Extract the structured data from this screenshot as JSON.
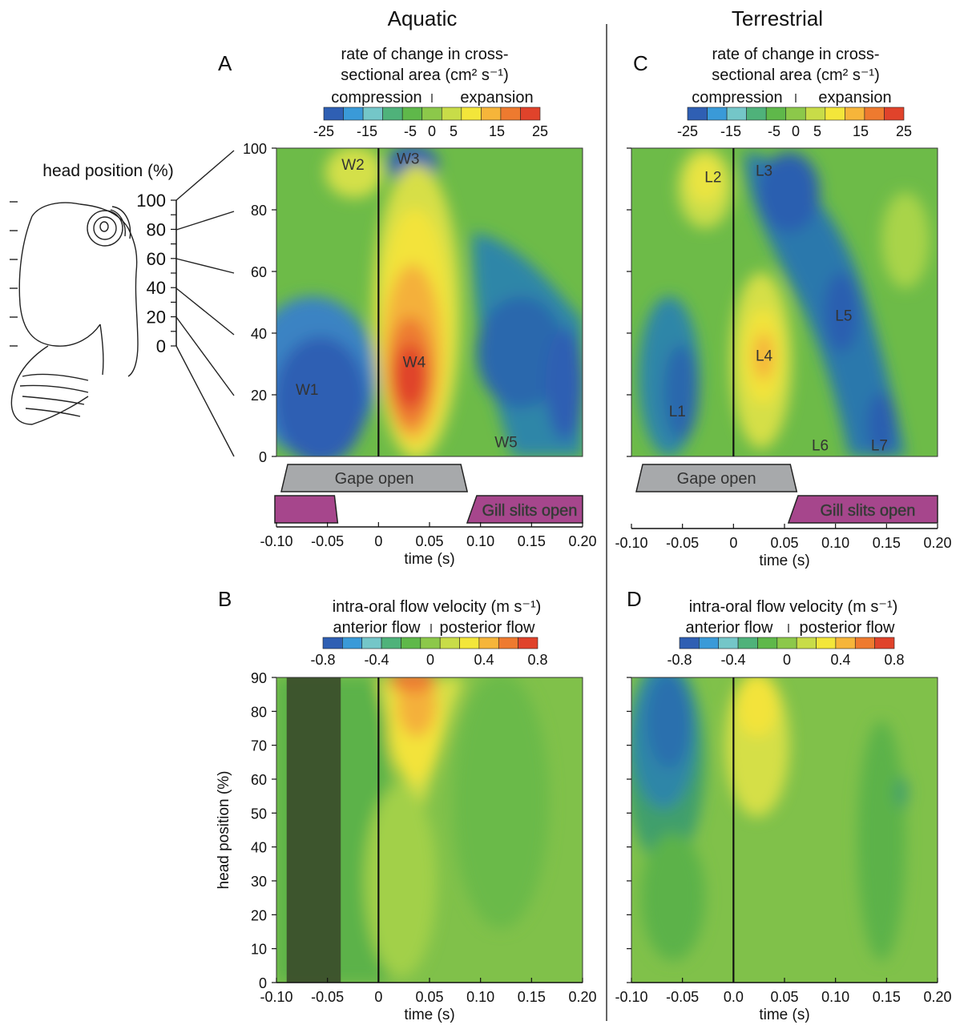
{
  "columns": {
    "aquatic": "Aquatic",
    "terrestrial": "Terrestrial"
  },
  "panels": {
    "A": "A",
    "B": "B",
    "C": "C",
    "D": "D"
  },
  "sketch": {
    "label": "head position (%)",
    "ticks": [
      "100",
      "80",
      "60",
      "40",
      "20",
      "0"
    ]
  },
  "area_colorbar": {
    "title1": "rate of change in cross-",
    "title2": "sectional area (cm² s⁻¹)",
    "left_label": "compression",
    "right_label": "expansion",
    "ticks": [
      "-25",
      "-15",
      "-5",
      "0",
      "5",
      "15",
      "25"
    ]
  },
  "flow_colorbar": {
    "title": "intra-oral flow velocity (m s⁻¹)",
    "left_label": "anterior flow",
    "right_label": "posterior flow",
    "ticks": [
      "-0.8",
      "-0.4",
      "0",
      "0.4",
      "0.8"
    ]
  },
  "colors": {
    "scale": [
      "#2f5fb3",
      "#3a9ad8",
      "#74c6c8",
      "#4fb27a",
      "#5fb84a",
      "#8cc84a",
      "#c8dc48",
      "#f3e63a",
      "#f6b53a",
      "#ee7a2f",
      "#e0432b"
    ],
    "gape": "#a7a9ab",
    "gill": "#a6468c",
    "shade": "#3a4a2a"
  },
  "chart_data": [
    {
      "type": "heatmap",
      "panel": "A",
      "xlabel": "time (s)",
      "x_ticks": [
        "-0.10",
        "-0.05",
        "0",
        "0.05",
        "0.10",
        "0.15",
        "0.20"
      ],
      "y_ticks": [
        "0",
        "20",
        "40",
        "60",
        "80",
        "100"
      ],
      "xlim": [
        -0.1,
        0.2
      ],
      "ylim": [
        0,
        100
      ],
      "zones": [
        {
          "label": "W1",
          "t": -0.07,
          "h": 20
        },
        {
          "label": "W2",
          "t": -0.025,
          "h": 93
        },
        {
          "label": "W3",
          "t": 0.029,
          "h": 95
        },
        {
          "label": "W4",
          "t": 0.035,
          "h": 29
        },
        {
          "label": "W5",
          "t": 0.125,
          "h": 3
        }
      ],
      "bars": [
        {
          "label": "Gape open",
          "start": -0.1,
          "end": 0.087
        },
        {
          "label": "Gill slits open",
          "start": 0.09,
          "end": 0.2,
          "pre_start": -0.1,
          "pre_end": -0.04
        }
      ]
    },
    {
      "type": "heatmap",
      "panel": "B",
      "xlabel": "time (s)",
      "ylabel": "head position (%)",
      "x_ticks": [
        "-0.10",
        "-0.05",
        "0",
        "0.05",
        "0.10",
        "0.15",
        "0.20"
      ],
      "y_ticks": [
        "0",
        "10",
        "20",
        "30",
        "40",
        "50",
        "60",
        "70",
        "80",
        "90"
      ],
      "xlim": [
        -0.1,
        0.2
      ],
      "ylim": [
        0,
        90
      ],
      "shaded_interval": [
        -0.09,
        -0.037
      ]
    },
    {
      "type": "heatmap",
      "panel": "C",
      "xlabel": "time (s)",
      "x_ticks": [
        "-0.10",
        "-0.05",
        "0",
        "0.05",
        "0.10",
        "0.15",
        "0.20"
      ],
      "xlim": [
        -0.1,
        0.2
      ],
      "ylim": [
        0,
        100
      ],
      "zones": [
        {
          "label": "L1",
          "t": -0.055,
          "h": 13
        },
        {
          "label": "L2",
          "t": -0.02,
          "h": 89
        },
        {
          "label": "L3",
          "t": 0.03,
          "h": 91
        },
        {
          "label": "L4",
          "t": 0.03,
          "h": 31
        },
        {
          "label": "L5",
          "t": 0.108,
          "h": 44
        },
        {
          "label": "L6",
          "t": 0.085,
          "h": 2
        },
        {
          "label": "L7",
          "t": 0.143,
          "h": 2
        }
      ],
      "bars": [
        {
          "label": "Gape open",
          "start": -0.1,
          "end": 0.062
        },
        {
          "label": "Gill slits open",
          "start": 0.057,
          "end": 0.2
        }
      ]
    },
    {
      "type": "heatmap",
      "panel": "D",
      "xlabel": "time (s)",
      "x_ticks": [
        "-0.10",
        "-0.05",
        "0.0",
        "0.05",
        "0.10",
        "0.15",
        "0.20"
      ],
      "xlim": [
        -0.1,
        0.2
      ],
      "ylim": [
        0,
        90
      ]
    }
  ]
}
